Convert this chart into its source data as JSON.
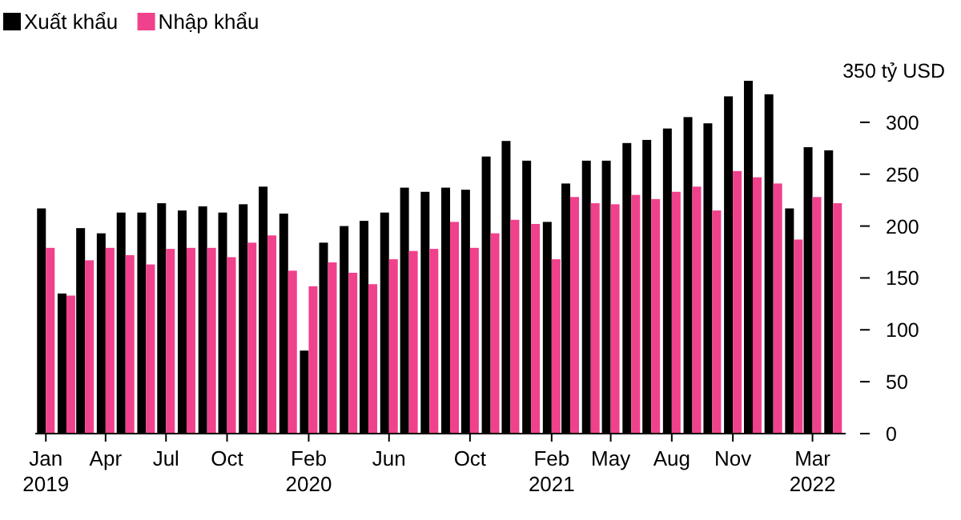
{
  "chart_data": {
    "type": "bar",
    "legend": "top left",
    "grid": false,
    "x": [
      "2019-01",
      "2019-02",
      "2019-03",
      "2019-04",
      "2019-05",
      "2019-06",
      "2019-07",
      "2019-08",
      "2019-09",
      "2019-10",
      "2019-11",
      "2019-12",
      "2020-01",
      "2020-02",
      "2020-03",
      "2020-04",
      "2020-05",
      "2020-06",
      "2020-07",
      "2020-08",
      "2020-09",
      "2020-10",
      "2020-11",
      "2020-12",
      "2021-01",
      "2021-02",
      "2021-03",
      "2021-04",
      "2021-05",
      "2021-06",
      "2021-07",
      "2021-08",
      "2021-09",
      "2021-10",
      "2021-11",
      "2021-12",
      "2022-01",
      "2022-02",
      "2022-03",
      "2022-04"
    ],
    "series": [
      {
        "name": "Xuất khẩu",
        "color": "#000000",
        "values": [
          217,
          135,
          198,
          193,
          213,
          213,
          222,
          215,
          219,
          213,
          221,
          238,
          212,
          80,
          184,
          200,
          205,
          213,
          237,
          233,
          237,
          235,
          267,
          282,
          263,
          204,
          241,
          263,
          263,
          280,
          283,
          294,
          305,
          299,
          325,
          340,
          327,
          217,
          276,
          273
        ]
      },
      {
        "name": "Nhập khẩu",
        "color": "#f0418c",
        "values": [
          179,
          133,
          167,
          179,
          172,
          163,
          178,
          179,
          179,
          170,
          184,
          191,
          157,
          142,
          165,
          155,
          144,
          168,
          176,
          178,
          204,
          179,
          193,
          206,
          202,
          168,
          228,
          222,
          221,
          230,
          226,
          233,
          238,
          215,
          253,
          247,
          241,
          187,
          228,
          222
        ]
      }
    ],
    "xlim": [
      "2018-12-16",
      "2022-04-20"
    ],
    "xticks": [
      {
        "value": "2019-01",
        "label": "Jan\n2019"
      },
      {
        "value": "2019-04",
        "label": "Apr"
      },
      {
        "value": "2019-07",
        "label": "Jul"
      },
      {
        "value": "2019-10",
        "label": "Oct"
      },
      {
        "value": "2020-02",
        "label": "Feb\n2020"
      },
      {
        "value": "2020-06",
        "label": "Jun"
      },
      {
        "value": "2020-10",
        "label": "Oct"
      },
      {
        "value": "2021-02",
        "label": "Feb\n2021"
      },
      {
        "value": "2021-05",
        "label": "May"
      },
      {
        "value": "2021-08",
        "label": "Aug"
      },
      {
        "value": "2021-11",
        "label": "Nov"
      },
      {
        "value": "2022-03",
        "label": "Mar\n2022"
      }
    ],
    "ylim": [
      0,
      350
    ],
    "yticks": [
      0,
      50,
      100,
      150,
      200,
      250,
      300,
      {
        "value": 350,
        "label": "350 tỷ USD"
      }
    ]
  }
}
